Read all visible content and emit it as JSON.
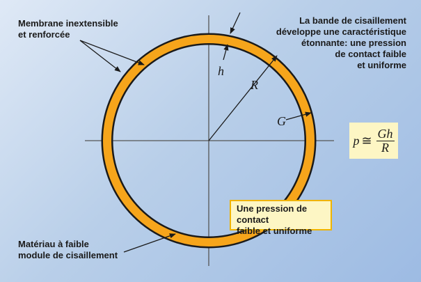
{
  "labels": {
    "membrane": [
      "Membrane inextensible",
      "et renforcée"
    ],
    "bande": [
      "La bande de cisaillement",
      "développe une caractéristique",
      "étonnante: une pression",
      "de contact faible",
      "et uniforme"
    ],
    "material": [
      "Matériau à faible",
      "module de cisaillement"
    ],
    "pression": [
      "Une pression de contact",
      "faible et uniforme"
    ]
  },
  "symbols": {
    "h": "h",
    "R": "R",
    "G": "G"
  },
  "formula": {
    "lhs": "p",
    "relation": "≅",
    "numerator": "Gh",
    "denominator": "R"
  },
  "colors": {
    "ring": "#f6a51b",
    "outline": "#1a1a1a",
    "axis": "#555555",
    "highlight": "#fdf6c4"
  }
}
